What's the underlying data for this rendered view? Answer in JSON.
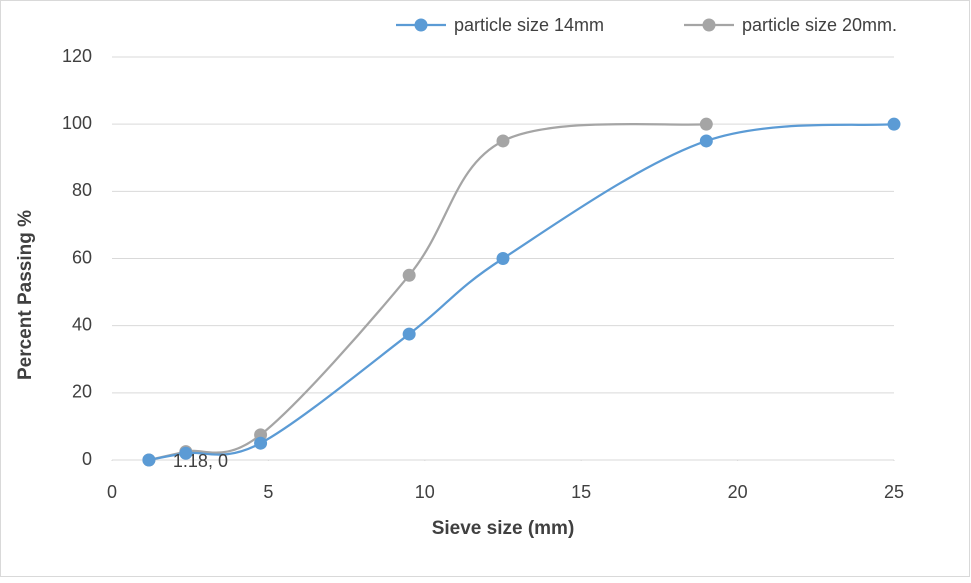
{
  "chart_data": {
    "type": "scatter",
    "smooth": true,
    "xlabel": "Sieve size (mm)",
    "ylabel": "Percent Passing %",
    "xlim": [
      0,
      25
    ],
    "xticks": [
      0,
      5,
      10,
      15,
      20,
      25
    ],
    "ylim": [
      0,
      120
    ],
    "yticks": [
      0,
      20,
      40,
      60,
      80,
      100,
      120
    ],
    "grid": true,
    "legend": "top",
    "series": [
      {
        "name": "particle size 14mm",
        "color": "#5b9bd5",
        "x": [
          1.18,
          2.36,
          4.75,
          9.5,
          12.5,
          19,
          25
        ],
        "values": [
          0,
          2,
          5,
          37.5,
          60,
          95,
          100
        ],
        "value_labels": [
          "1.18, 0",
          null,
          null,
          null,
          null,
          null,
          null
        ]
      },
      {
        "name": "particle size 20mm.",
        "color": "#a5a5a5",
        "x": [
          1.18,
          2.36,
          4.75,
          9.5,
          12.5,
          19
        ],
        "values": [
          0,
          2.5,
          7.5,
          55,
          95,
          100
        ]
      }
    ]
  }
}
